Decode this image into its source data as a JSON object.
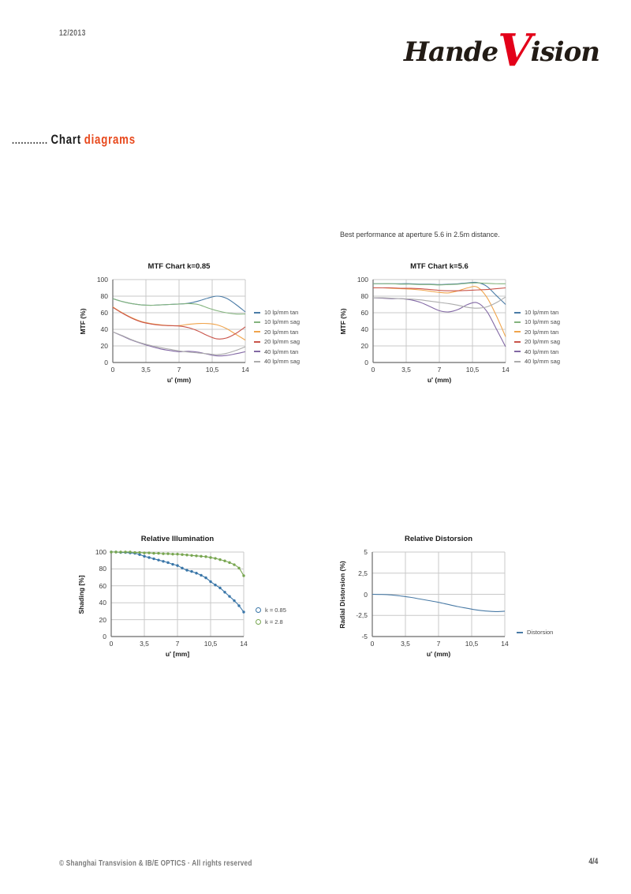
{
  "page": {
    "date": "12/2013",
    "page_number": "4/4",
    "copyright": "© Shanghai Transvision & IB/E OPTICS · All rights reserved"
  },
  "logo": {
    "pre": "Hande",
    "accent": "V",
    "post": "ision",
    "accent_color": "#e30019",
    "text_color": "#221b15"
  },
  "section_title": {
    "leader": "............",
    "primary": "Chart",
    "accent": "diagrams",
    "accent_color": "#e8491d"
  },
  "note": "Best performance at aperture 5.6 in 2.5m distance.",
  "chart_data": [
    {
      "id": "mtf-k085",
      "type": "line",
      "title": "MTF Chart k=0.85",
      "xlabel": "u' (mm)",
      "ylabel": "MTF (%)",
      "xlim": [
        0,
        14
      ],
      "ylim": [
        0,
        100
      ],
      "grid": true,
      "legend_position": "right",
      "legend_marker": "dash",
      "xticks": {
        "values": [
          0,
          3.5,
          7,
          10.5,
          14
        ],
        "labels": [
          "0",
          "3,5",
          "7",
          "10,5",
          "14"
        ]
      },
      "yticks": {
        "values": [
          0,
          20,
          40,
          60,
          80,
          100
        ],
        "labels": [
          "0",
          "20",
          "40",
          "60",
          "80",
          "100"
        ]
      },
      "x": [
        0,
        1,
        2,
        3,
        4,
        5,
        6,
        7,
        8,
        9,
        10,
        11,
        12,
        13,
        14
      ],
      "series": [
        {
          "name": "10 lp/mm tan",
          "color": "#4a7ba6",
          "values": [
            77,
            73.5,
            71,
            69.5,
            69,
            69.5,
            70,
            70.5,
            71.5,
            74,
            77.5,
            80,
            77.5,
            70,
            61
          ]
        },
        {
          "name": "10 lp/mm sag",
          "color": "#84b47e",
          "values": [
            77,
            73.5,
            71,
            69.5,
            69,
            69.5,
            70,
            70.5,
            71,
            70,
            66,
            62.5,
            60,
            58.5,
            58.5
          ]
        },
        {
          "name": "20 lp/mm tan",
          "color": "#f0a44c",
          "values": [
            67,
            60,
            54,
            49.5,
            47,
            45.5,
            44.5,
            44.5,
            46,
            47,
            47,
            45.5,
            41,
            34,
            27
          ]
        },
        {
          "name": "20 lp/mm sag",
          "color": "#c9544a",
          "values": [
            66.5,
            59.5,
            53.5,
            49,
            46.5,
            45,
            44.5,
            44,
            42,
            38,
            32.5,
            28.5,
            29.5,
            35,
            43
          ]
        },
        {
          "name": "40 lp/mm tan",
          "color": "#8268a4",
          "values": [
            37,
            32,
            27,
            23,
            19.5,
            16.5,
            14.5,
            13,
            13.5,
            12.5,
            10,
            8,
            8.5,
            10.5,
            13
          ]
        },
        {
          "name": "40 lp/mm sag",
          "color": "#acacac",
          "values": [
            37,
            32.5,
            27.5,
            23.5,
            20.5,
            18,
            16,
            14,
            12.5,
            11.5,
            10.5,
            9.5,
            11,
            14.5,
            19
          ]
        }
      ]
    },
    {
      "id": "mtf-k56",
      "type": "line",
      "title": "MTF Chart k=5.6",
      "xlabel": "u' (mm)",
      "ylabel": "MTF (%)",
      "xlim": [
        0,
        14
      ],
      "ylim": [
        0,
        100
      ],
      "grid": true,
      "legend_position": "right",
      "legend_marker": "dash",
      "xticks": {
        "values": [
          0,
          3.5,
          7,
          10.5,
          14
        ],
        "labels": [
          "0",
          "3,5",
          "7",
          "10,5",
          "14"
        ]
      },
      "yticks": {
        "values": [
          0,
          20,
          40,
          60,
          80,
          100
        ],
        "labels": [
          "0",
          "20",
          "40",
          "60",
          "80",
          "100"
        ]
      },
      "x": [
        0,
        1,
        2,
        3,
        4,
        5,
        6,
        7,
        8,
        9,
        10,
        11,
        12,
        13,
        14
      ],
      "series": [
        {
          "name": "10 lp/mm tan",
          "color": "#4a7ba6",
          "values": [
            95,
            95,
            95,
            95,
            95,
            94.5,
            94.5,
            94,
            94.5,
            95,
            96,
            96.5,
            92,
            81,
            70
          ]
        },
        {
          "name": "10 lp/mm sag",
          "color": "#84b47e",
          "values": [
            95,
            95,
            95,
            94.5,
            94.5,
            94,
            94,
            93.5,
            94,
            94.5,
            95.5,
            96,
            95.5,
            95,
            95
          ]
        },
        {
          "name": "20 lp/mm tan",
          "color": "#f0a44c",
          "values": [
            90,
            90,
            89.5,
            89,
            88.5,
            87.5,
            86,
            84.5,
            84,
            86.5,
            90,
            91,
            79,
            57,
            31
          ]
        },
        {
          "name": "20 lp/mm sag",
          "color": "#c9544a",
          "values": [
            90,
            90,
            90,
            89.5,
            89.5,
            89,
            88,
            87,
            86.5,
            86.5,
            87,
            87.5,
            88,
            89,
            90
          ]
        },
        {
          "name": "40 lp/mm tan",
          "color": "#8268a4",
          "values": [
            78,
            77.5,
            77,
            77,
            75.5,
            72.5,
            67.5,
            62.5,
            61,
            64,
            70,
            72,
            62,
            41,
            19
          ]
        },
        {
          "name": "40 lp/mm sag",
          "color": "#acacac",
          "values": [
            78,
            78,
            77.5,
            77,
            76.5,
            75.5,
            74,
            72.5,
            71,
            69,
            66.5,
            65.5,
            67,
            72,
            79
          ]
        }
      ]
    },
    {
      "id": "relative-illumination",
      "type": "line",
      "title": "Relative Illumination",
      "xlabel": "u' [mm]",
      "ylabel": "Shading [%]",
      "xlim": [
        0,
        14
      ],
      "ylim": [
        0,
        100
      ],
      "grid": true,
      "legend_position": "right",
      "legend_marker": "ring",
      "marker": "circle",
      "xticks": {
        "values": [
          0,
          3.5,
          7,
          10.5,
          14
        ],
        "labels": [
          "0",
          "3,5",
          "7",
          "10,5",
          "14"
        ]
      },
      "yticks": {
        "values": [
          0,
          20,
          40,
          60,
          80,
          100
        ],
        "labels": [
          "0",
          "20",
          "40",
          "60",
          "80",
          "100"
        ]
      },
      "x": [
        0,
        0.5,
        1,
        1.5,
        2,
        2.5,
        3,
        3.5,
        4,
        4.5,
        5,
        5.5,
        6,
        6.5,
        7,
        7.5,
        8,
        8.5,
        9,
        9.5,
        10,
        10.5,
        11,
        11.5,
        12,
        12.5,
        13,
        13.5,
        14
      ],
      "series": [
        {
          "name": "k = 0.85",
          "color": "#3a76a8",
          "values": [
            100,
            100,
            99.5,
            99.5,
            99,
            98.5,
            97,
            95,
            93.5,
            92,
            90.5,
            89,
            87.5,
            85.5,
            84,
            81,
            78.5,
            77,
            75,
            72.5,
            69.5,
            65,
            61,
            57.5,
            52.5,
            47.5,
            42.5,
            36.5,
            29
          ]
        },
        {
          "name": "k = 2.8",
          "color": "#78a651",
          "values": [
            100,
            100,
            100,
            100,
            100,
            99.5,
            99.5,
            99,
            99,
            98.5,
            98.5,
            98,
            98,
            97.5,
            97.5,
            97,
            96.5,
            96,
            95.5,
            95,
            94.5,
            93.5,
            92.5,
            91,
            89.5,
            87.5,
            85,
            81,
            72
          ]
        }
      ]
    },
    {
      "id": "relative-distorsion",
      "type": "line",
      "title": "Relative Distorsion",
      "xlabel": "u' (mm)",
      "ylabel": "Radial Distorsion (%)",
      "xlim": [
        0,
        14
      ],
      "ylim": [
        -5,
        5
      ],
      "grid": true,
      "legend_position": "right",
      "legend_marker": "dash",
      "xticks": {
        "values": [
          0,
          3.5,
          7,
          10.5,
          14
        ],
        "labels": [
          "0",
          "3,5",
          "7",
          "10,5",
          "14"
        ]
      },
      "yticks": {
        "values": [
          -5,
          -2.5,
          0,
          2.5,
          5
        ],
        "labels": [
          "-5",
          "-2,5",
          "0",
          "2,5",
          "5"
        ]
      },
      "x": [
        0,
        1,
        2,
        3,
        4,
        5,
        6,
        7,
        8,
        9,
        10,
        11,
        12,
        13,
        14
      ],
      "series": [
        {
          "name": "Distorsion",
          "color": "#4a7ba6",
          "values": [
            0,
            -0.02,
            -0.08,
            -0.2,
            -0.35,
            -0.55,
            -0.75,
            -0.95,
            -1.2,
            -1.45,
            -1.65,
            -1.85,
            -1.98,
            -2.05,
            -2.0
          ]
        }
      ]
    }
  ]
}
